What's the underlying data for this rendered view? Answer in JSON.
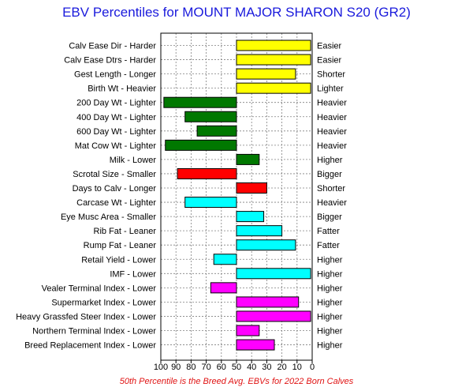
{
  "chart_data": {
    "type": "bar",
    "title": "EBV Percentiles for MOUNT MAJOR SHARON S20 (GR2)",
    "footnote": "50th Percentile is the Breed Avg. EBVs for 2022 Born Calves",
    "x_ticks": [
      "100",
      "90",
      "80",
      "70",
      "60",
      "50",
      "40",
      "30",
      "20",
      "10",
      "0"
    ],
    "xlim": [
      100,
      0
    ],
    "baseline": 50,
    "grid": true,
    "colors": {
      "yellow": "#ffff00",
      "green": "#007800",
      "red": "#ff0000",
      "cyan": "#00ffff",
      "magenta": "#ff00ff"
    },
    "traits": [
      {
        "left": "Calv Ease Dir - Harder",
        "right": "Easier",
        "percentile": 1,
        "color": "yellow"
      },
      {
        "left": "Calv Ease Dtrs - Harder",
        "right": "Easier",
        "percentile": 1,
        "color": "yellow"
      },
      {
        "left": "Gest Length - Longer",
        "right": "Shorter",
        "percentile": 11,
        "color": "yellow"
      },
      {
        "left": "Birth Wt - Heavier",
        "right": "Lighter",
        "percentile": 1,
        "color": "yellow"
      },
      {
        "left": "200 Day Wt - Lighter",
        "right": "Heavier",
        "percentile": 98,
        "color": "green"
      },
      {
        "left": "400 Day Wt - Lighter",
        "right": "Heavier",
        "percentile": 84,
        "color": "green"
      },
      {
        "left": "600 Day Wt - Lighter",
        "right": "Heavier",
        "percentile": 76,
        "color": "green"
      },
      {
        "left": "Mat Cow Wt - Lighter",
        "right": "Heavier",
        "percentile": 97,
        "color": "green"
      },
      {
        "left": "Milk - Lower",
        "right": "Higher",
        "percentile": 35,
        "color": "green"
      },
      {
        "left": "Scrotal Size - Smaller",
        "right": "Bigger",
        "percentile": 89,
        "color": "red"
      },
      {
        "left": "Days to Calv - Longer",
        "right": "Shorter",
        "percentile": 30,
        "color": "red"
      },
      {
        "left": "Carcase Wt - Lighter",
        "right": "Heavier",
        "percentile": 84,
        "color": "cyan"
      },
      {
        "left": "Eye Musc Area - Smaller",
        "right": "Bigger",
        "percentile": 32,
        "color": "cyan"
      },
      {
        "left": "Rib Fat - Leaner",
        "right": "Fatter",
        "percentile": 20,
        "color": "cyan"
      },
      {
        "left": "Rump Fat - Leaner",
        "right": "Fatter",
        "percentile": 11,
        "color": "cyan"
      },
      {
        "left": "Retail Yield - Lower",
        "right": "Higher",
        "percentile": 65,
        "color": "cyan"
      },
      {
        "left": "IMF - Lower",
        "right": "Higher",
        "percentile": 1,
        "color": "cyan"
      },
      {
        "left": "Vealer Terminal Index - Lower",
        "right": "Higher",
        "percentile": 67,
        "color": "magenta"
      },
      {
        "left": "Supermarket Index - Lower",
        "right": "Higher",
        "percentile": 9,
        "color": "magenta"
      },
      {
        "left": "Heavy Grassfed Steer Index - Lower",
        "right": "Higher",
        "percentile": 1,
        "color": "magenta"
      },
      {
        "left": "Northern Terminal Index - Lower",
        "right": "Higher",
        "percentile": 35,
        "color": "magenta"
      },
      {
        "left": "Breed Replacement Index - Lower",
        "right": "Higher",
        "percentile": 25,
        "color": "magenta"
      }
    ]
  }
}
